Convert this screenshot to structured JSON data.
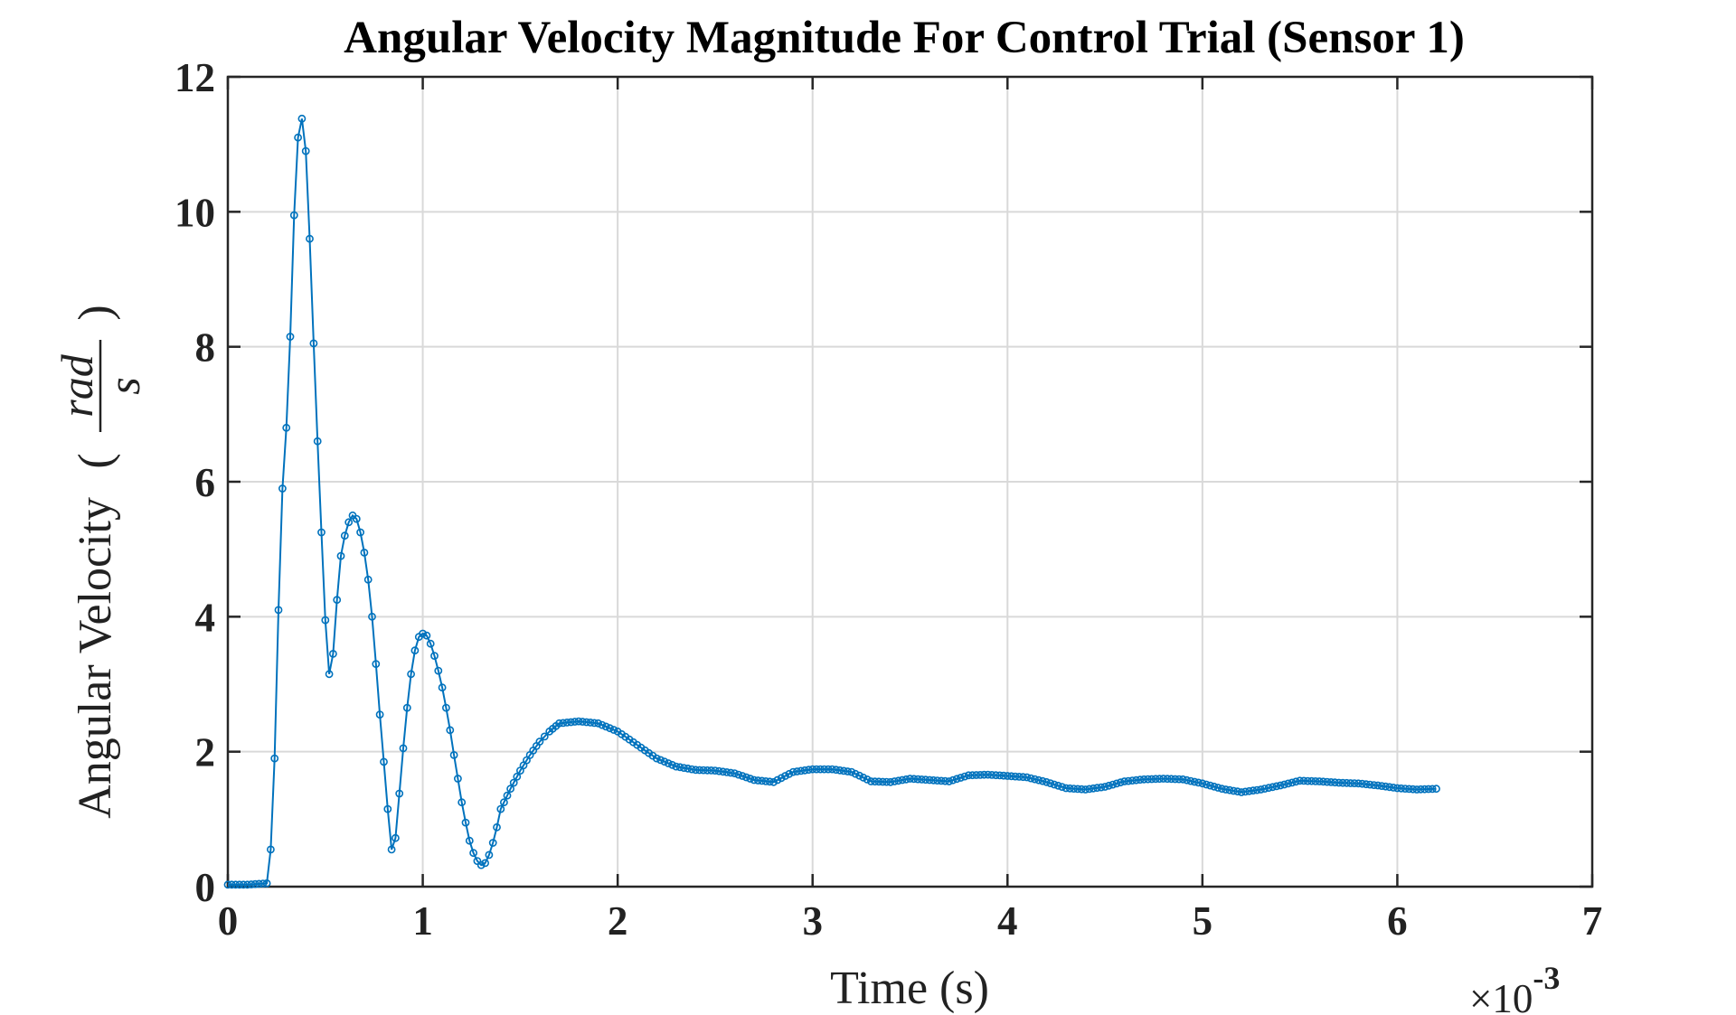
{
  "chart_data": {
    "type": "line",
    "title": "Angular Velocity Magnitude For Control Trial (Sensor 1)",
    "xlabel": "Time (s)",
    "ylabel": "Angular Velocity",
    "ylabel_unit_num": "rad",
    "ylabel_unit_den": "s",
    "x_multiplier": "×10-3",
    "x_multiplier_base": "×10",
    "x_multiplier_exp": "-3",
    "xlim": [
      0,
      7
    ],
    "ylim": [
      0,
      12
    ],
    "xticks": [
      "0",
      "1",
      "2",
      "3",
      "4",
      "5",
      "6",
      "7"
    ],
    "yticks": [
      "0",
      "2",
      "4",
      "6",
      "8",
      "10",
      "12"
    ],
    "grid": true,
    "marker": "circle",
    "color": "#0072BD",
    "series": [
      {
        "x": [
          0,
          0.1,
          0.2,
          0.22,
          0.24,
          0.26,
          0.28,
          0.3,
          0.32,
          0.34,
          0.36,
          0.38,
          0.4,
          0.42,
          0.44,
          0.46,
          0.48,
          0.5,
          0.52,
          0.54,
          0.56,
          0.58,
          0.6,
          0.62,
          0.64,
          0.66,
          0.68,
          0.7,
          0.72,
          0.74,
          0.76,
          0.78,
          0.8,
          0.82,
          0.84,
          0.86,
          0.88,
          0.9,
          0.92,
          0.94,
          0.96,
          0.98,
          1.0,
          1.02,
          1.04,
          1.06,
          1.08,
          1.1,
          1.12,
          1.14,
          1.16,
          1.18,
          1.2,
          1.22,
          1.24,
          1.26,
          1.28,
          1.3,
          1.32,
          1.34,
          1.36,
          1.38,
          1.4,
          1.45,
          1.5,
          1.55,
          1.6,
          1.65,
          1.7,
          1.8,
          1.9,
          2.0,
          2.1,
          2.2,
          2.3,
          2.4,
          2.5,
          2.6,
          2.7,
          2.8,
          2.9,
          3.0,
          3.1,
          3.2,
          3.3,
          3.4,
          3.5,
          3.6,
          3.7,
          3.8,
          3.9,
          4.0,
          4.1,
          4.2,
          4.3,
          4.4,
          4.5,
          4.6,
          4.7,
          4.8,
          4.9,
          5.0,
          5.1,
          5.2,
          5.3,
          5.4,
          5.5,
          5.6,
          5.7,
          5.8,
          5.9,
          6.0,
          6.1,
          6.2
        ],
        "y": [
          0.03,
          0.03,
          0.05,
          0.55,
          1.9,
          4.1,
          5.9,
          6.8,
          8.15,
          9.95,
          11.1,
          11.38,
          10.9,
          9.6,
          8.05,
          6.6,
          5.25,
          3.95,
          3.15,
          3.45,
          4.25,
          4.9,
          5.2,
          5.4,
          5.5,
          5.45,
          5.25,
          4.95,
          4.55,
          4.0,
          3.3,
          2.55,
          1.85,
          1.15,
          0.55,
          0.72,
          1.38,
          2.05,
          2.65,
          3.15,
          3.5,
          3.7,
          3.75,
          3.72,
          3.6,
          3.42,
          3.2,
          2.95,
          2.65,
          2.32,
          1.95,
          1.6,
          1.25,
          0.95,
          0.68,
          0.5,
          0.38,
          0.32,
          0.35,
          0.47,
          0.65,
          0.88,
          1.15,
          1.45,
          1.72,
          1.95,
          2.15,
          2.3,
          2.42,
          2.45,
          2.42,
          2.3,
          2.1,
          1.9,
          1.78,
          1.73,
          1.72,
          1.68,
          1.58,
          1.55,
          1.7,
          1.74,
          1.74,
          1.7,
          1.56,
          1.55,
          1.6,
          1.58,
          1.56,
          1.65,
          1.66,
          1.64,
          1.62,
          1.55,
          1.46,
          1.44,
          1.48,
          1.56,
          1.59,
          1.6,
          1.59,
          1.53,
          1.45,
          1.4,
          1.44,
          1.5,
          1.57,
          1.56,
          1.54,
          1.53,
          1.5,
          1.46,
          1.44,
          1.45
        ]
      }
    ]
  }
}
